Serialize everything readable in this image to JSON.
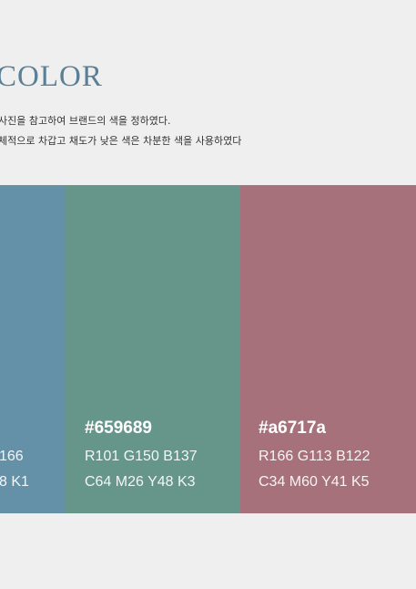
{
  "section": {
    "title": "COLOR",
    "title_color": "#5a7f97",
    "description_line1": "사진을 참고하여 브랜드의 색을 정하였다.",
    "description_line2": "체적으로 차갑고 채도가 낮은 색은 차분한 색을 사용하였다"
  },
  "swatches": [
    {
      "color": "#6591a8",
      "hex_label": "",
      "rgb_label": "166",
      "cmyk_label": "8 K1"
    },
    {
      "color": "#659689",
      "hex_label": "#659689",
      "rgb_label": "R101 G150 B137",
      "cmyk_label": "C64 M26 Y48 K3"
    },
    {
      "color": "#a6717a",
      "hex_label": "#a6717a",
      "rgb_label": "R166 G113 B122",
      "cmyk_label": "C34 M60 Y41 K5"
    }
  ]
}
